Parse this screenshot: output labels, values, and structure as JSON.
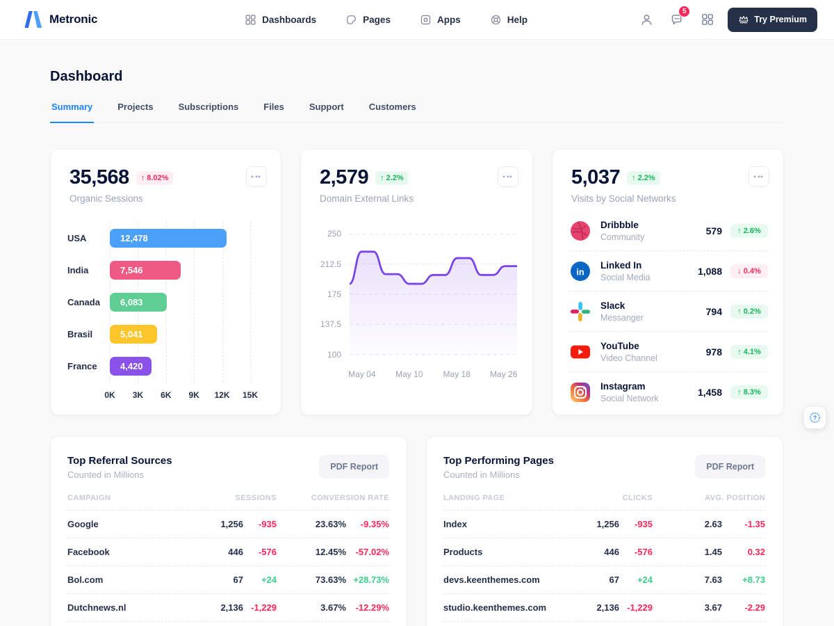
{
  "header": {
    "brand": "Metronic",
    "nav": [
      {
        "label": "Dashboards",
        "icon": "dashboards-icon"
      },
      {
        "label": "Pages",
        "icon": "pages-icon"
      },
      {
        "label": "Apps",
        "icon": "apps-icon"
      },
      {
        "label": "Help",
        "icon": "help-icon"
      }
    ],
    "chat_badge": "5",
    "premium_label": "Try Premium"
  },
  "page": {
    "title": "Dashboard",
    "tabs": [
      {
        "label": "Summary",
        "active": true
      },
      {
        "label": "Projects",
        "active": false
      },
      {
        "label": "Subscriptions",
        "active": false
      },
      {
        "label": "Files",
        "active": false
      },
      {
        "label": "Support",
        "active": false
      },
      {
        "label": "Customers",
        "active": false
      }
    ]
  },
  "organic": {
    "value": "35,568",
    "delta": "↑ 8.02%",
    "delta_tone": "red",
    "label": "Organic Sessions",
    "chart": {
      "type": "bar",
      "categories": [
        "USA",
        "India",
        "Canada",
        "Brasil",
        "France"
      ],
      "values": [
        12478,
        7546,
        6083,
        5041,
        4420
      ],
      "value_labels": [
        "12,478",
        "7,546",
        "6,083",
        "5,041",
        "4,420"
      ],
      "colors": [
        "#4da0fa",
        "#ee5a82",
        "#5fce93",
        "#ffc62b",
        "#8a52e9"
      ],
      "xticks": [
        "0K",
        "3K",
        "6K",
        "9K",
        "12K",
        "15K"
      ],
      "xmax": 15000
    }
  },
  "domain_links": {
    "value": "2,579",
    "delta": "↑ 2.2%",
    "delta_tone": "green",
    "label": "Domain External Links",
    "chart": {
      "type": "line",
      "color": "#7b44e8",
      "yticks": [
        250,
        212.5,
        175,
        137.5,
        100
      ],
      "ytick_labels": [
        "250",
        "212.5",
        "175",
        "137.5",
        "100"
      ],
      "x": [
        "May 04",
        "May 10",
        "May 18",
        "May 26"
      ],
      "values": [
        188,
        228,
        228,
        200,
        200,
        188,
        188,
        199,
        199,
        220,
        220,
        199,
        199,
        210,
        210
      ]
    }
  },
  "social": {
    "value": "5,037",
    "delta": "↑ 2.2%",
    "delta_tone": "green",
    "label": "Visits by Social Networks",
    "rows": [
      {
        "icon": "dribbble-icon",
        "name": "Dribbble",
        "sub": "Community",
        "value": "579",
        "delta": "↑ 2.6%",
        "tone": "green"
      },
      {
        "icon": "linkedin-icon",
        "name": "Linked In",
        "sub": "Social Media",
        "value": "1,088",
        "delta": "↓ 0.4%",
        "tone": "red"
      },
      {
        "icon": "slack-icon",
        "name": "Slack",
        "sub": "Messanger",
        "value": "794",
        "delta": "↑ 0.2%",
        "tone": "green"
      },
      {
        "icon": "youtube-icon",
        "name": "YouTube",
        "sub": "Video Channel",
        "value": "978",
        "delta": "↑ 4.1%",
        "tone": "green"
      },
      {
        "icon": "instagram-icon",
        "name": "Instagram",
        "sub": "Social Network",
        "value": "1,458",
        "delta": "↑ 8.3%",
        "tone": "green"
      }
    ]
  },
  "referrals": {
    "title": "Top Referral Sources",
    "subtitle": "Counted in Millions",
    "button": "PDF Report",
    "columns": [
      "CAMPAIGN",
      "SESSIONS",
      "CONVERSION RATE"
    ],
    "rows": [
      {
        "name": "Google",
        "v1": "1,256",
        "d1": "-935",
        "d1_tone": "red",
        "v2": "23.63%",
        "d2": "-9.35%",
        "d2_tone": "red"
      },
      {
        "name": "Facebook",
        "v1": "446",
        "d1": "-576",
        "d1_tone": "red",
        "v2": "12.45%",
        "d2": "-57.02%",
        "d2_tone": "red"
      },
      {
        "name": "Bol.com",
        "v1": "67",
        "d1": "+24",
        "d1_tone": "green",
        "v2": "73.63%",
        "d2": "+28.73%",
        "d2_tone": "green"
      },
      {
        "name": "Dutchnews.nl",
        "v1": "2,136",
        "d1": "-1,229",
        "d1_tone": "red",
        "v2": "3.67%",
        "d2": "-12.29%",
        "d2_tone": "red"
      }
    ]
  },
  "pages_table": {
    "title": "Top Performing Pages",
    "subtitle": "Counted in Millions",
    "button": "PDF Report",
    "columns": [
      "LANDING PAGE",
      "CLICKS",
      "AVG. POSITION"
    ],
    "rows": [
      {
        "name": "Index",
        "v1": "1,256",
        "d1": "-935",
        "d1_tone": "red",
        "v2": "2.63",
        "d2": "-1.35",
        "d2_tone": "red"
      },
      {
        "name": "Products",
        "v1": "446",
        "d1": "-576",
        "d1_tone": "red",
        "v2": "1.45",
        "d2": "0.32",
        "d2_tone": "red"
      },
      {
        "name": "devs.keenthemes.com",
        "v1": "67",
        "d1": "+24",
        "d1_tone": "green",
        "v2": "7.63",
        "d2": "+8.73",
        "d2_tone": "green"
      },
      {
        "name": "studio.keenthemes.com",
        "v1": "2,136",
        "d1": "-1,229",
        "d1_tone": "red",
        "v2": "3.67",
        "d2": "-2.29",
        "d2_tone": "red"
      }
    ]
  },
  "colors": {
    "accent_blue": "#1b84ff",
    "danger": "#f8285a",
    "success": "#17c653",
    "line_purple": "#7b44e8",
    "dark_button": "#253049"
  }
}
